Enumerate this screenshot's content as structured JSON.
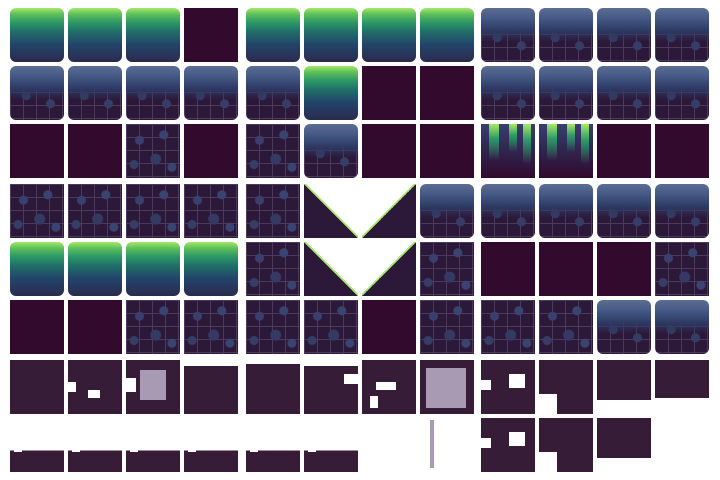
{
  "sheet": {
    "type": "tileset",
    "palette": {
      "dark": "#320a2e",
      "stone": "#3a4470",
      "grass_light": "#a5e86a",
      "grass_mid": "#2f9a66",
      "mask": "#361c37",
      "mask_hole": "#ffffff",
      "mask_grey": "#a79ab2"
    },
    "rows": [
      [
        "grass",
        "grass",
        "grass",
        "dark",
        "grass",
        "grass",
        "grass",
        "grass",
        "stone-top",
        "stone-top",
        "stone-top",
        "stone-top"
      ],
      [
        "stone-top",
        "stone-top",
        "stone-top",
        "stone-top",
        "stone-top",
        "grass",
        "dark",
        "dark",
        "stone-top",
        "stone-top",
        "stone-top",
        "stone-top"
      ],
      [
        "dark",
        "dark",
        "stone",
        "dark",
        "stone",
        "stone-top",
        "dark",
        "dark",
        "grass-drip",
        "grass-drip",
        "dark",
        "dark"
      ],
      [
        "stone",
        "stone",
        "stone",
        "stone",
        "stone",
        "slope-left",
        "slope-right",
        "stone-top",
        "stone-top",
        "stone-top",
        "stone-top",
        "stone-top"
      ],
      [
        "grass",
        "grass",
        "grass",
        "grass",
        "stone",
        "slope-left",
        "slope-right",
        "stone",
        "dark",
        "dark",
        "dark",
        "stone"
      ],
      [
        "dark",
        "dark",
        "stone",
        "stone",
        "stone",
        "stone",
        "dark",
        "stone",
        "stone",
        "stone",
        "stone-top",
        "stone-top"
      ],
      [
        "mask",
        "mask",
        "mask",
        "mask",
        "mask",
        "mask",
        "mask",
        "mask",
        "mask",
        "mask",
        "mask",
        "mask"
      ],
      [
        "mask-low",
        "mask-low",
        "mask-low",
        "mask-low",
        "mask-low",
        "mask-low",
        "empty",
        "mask-line",
        "mask",
        "mask",
        "mask",
        "empty"
      ]
    ]
  }
}
